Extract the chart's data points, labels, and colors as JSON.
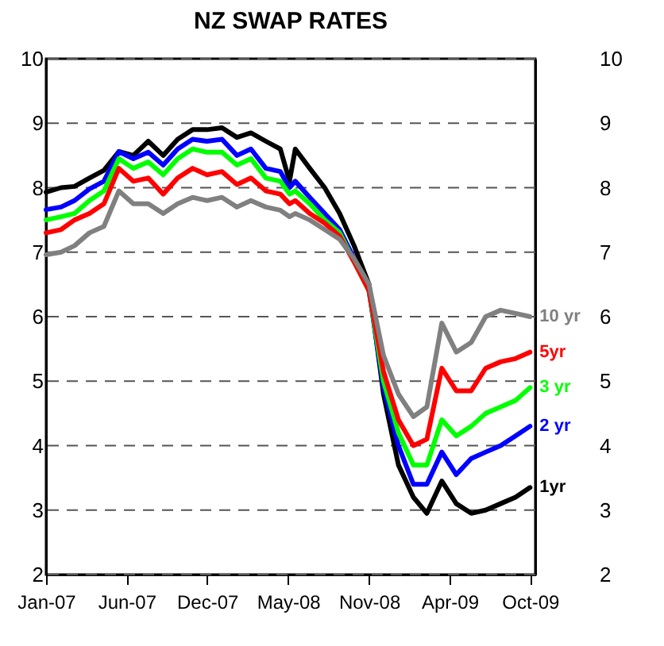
{
  "chart_data": {
    "type": "line",
    "title": "NZ SWAP RATES",
    "x": [
      "2007-01-01",
      "2007-02-01",
      "2007-03-01",
      "2007-04-01",
      "2007-05-01",
      "2007-06-01",
      "2007-07-01",
      "2007-08-01",
      "2007-09-01",
      "2007-10-01",
      "2007-11-01",
      "2007-12-01",
      "2008-01-01",
      "2008-02-01",
      "2008-03-01",
      "2008-04-01",
      "2008-05-01",
      "2008-05-20",
      "2008-06-01",
      "2008-07-01",
      "2008-08-01",
      "2008-09-01",
      "2008-10-01",
      "2008-11-01",
      "2008-12-01",
      "2009-01-01",
      "2009-02-01",
      "2009-03-01",
      "2009-04-01",
      "2009-05-01",
      "2009-06-01",
      "2009-07-01",
      "2009-08-01",
      "2009-09-01",
      "2009-10-01"
    ],
    "series": [
      {
        "name": "1yr",
        "color": "#000000",
        "values": [
          7.93,
          8.0,
          8.02,
          8.15,
          8.27,
          8.56,
          8.5,
          8.72,
          8.5,
          8.75,
          8.9,
          8.9,
          8.93,
          8.78,
          8.85,
          8.72,
          8.6,
          8.1,
          8.6,
          8.3,
          8.0,
          7.6,
          7.1,
          6.5,
          4.8,
          3.7,
          3.2,
          2.95,
          3.45,
          3.1,
          2.95,
          3.0,
          3.1,
          3.2,
          3.35
        ]
      },
      {
        "name": "2 yr",
        "color": "#0000ff",
        "values": [
          7.66,
          7.7,
          7.8,
          7.98,
          8.1,
          8.56,
          8.45,
          8.55,
          8.35,
          8.6,
          8.75,
          8.72,
          8.75,
          8.5,
          8.6,
          8.3,
          8.25,
          8.0,
          8.1,
          7.85,
          7.6,
          7.35,
          6.9,
          6.4,
          4.9,
          4.0,
          3.4,
          3.4,
          3.9,
          3.55,
          3.8,
          3.9,
          4.0,
          4.15,
          4.3
        ]
      },
      {
        "name": "3 yr",
        "color": "#00ff00",
        "values": [
          7.5,
          7.55,
          7.6,
          7.8,
          7.95,
          8.45,
          8.3,
          8.4,
          8.2,
          8.45,
          8.6,
          8.55,
          8.55,
          8.35,
          8.45,
          8.15,
          8.1,
          7.9,
          7.95,
          7.75,
          7.5,
          7.3,
          6.85,
          6.4,
          5.0,
          4.2,
          3.7,
          3.7,
          4.4,
          4.15,
          4.3,
          4.5,
          4.6,
          4.7,
          4.9
        ]
      },
      {
        "name": "5yr",
        "color": "#ff0000",
        "values": [
          7.3,
          7.35,
          7.5,
          7.6,
          7.75,
          8.3,
          8.1,
          8.15,
          7.9,
          8.15,
          8.3,
          8.2,
          8.25,
          8.05,
          8.15,
          7.95,
          7.9,
          7.75,
          7.8,
          7.6,
          7.45,
          7.25,
          6.85,
          6.4,
          5.15,
          4.4,
          4.0,
          4.1,
          5.2,
          4.85,
          4.85,
          5.2,
          5.3,
          5.35,
          5.45
        ]
      },
      {
        "name": "10 yr",
        "color": "#808080",
        "values": [
          6.96,
          7.0,
          7.1,
          7.3,
          7.4,
          7.95,
          7.75,
          7.75,
          7.6,
          7.75,
          7.85,
          7.8,
          7.85,
          7.7,
          7.8,
          7.7,
          7.65,
          7.55,
          7.6,
          7.5,
          7.35,
          7.2,
          6.9,
          6.5,
          5.4,
          4.8,
          4.45,
          4.6,
          5.9,
          5.45,
          5.6,
          6.0,
          6.1,
          6.05,
          6.0
        ]
      }
    ],
    "xlim": [
      "2007-01-01",
      "2009-10-12"
    ],
    "xticks": [
      {
        "value": "2007-01-01",
        "label": "Jan-07"
      },
      {
        "value": "2007-06-17",
        "label": "Jun-07"
      },
      {
        "value": "2007-12-01",
        "label": "Dec-07"
      },
      {
        "value": "2008-05-17",
        "label": "May-08"
      },
      {
        "value": "2008-11-01",
        "label": "Nov-08"
      },
      {
        "value": "2009-04-17",
        "label": "Apr-09"
      },
      {
        "value": "2009-10-01",
        "label": "Oct-09"
      }
    ],
    "ylim": [
      2,
      10
    ],
    "yticks": [
      2,
      3,
      4,
      5,
      6,
      7,
      8,
      9,
      10
    ],
    "y2lim": [
      2,
      10
    ],
    "y2ticks": [
      2,
      3,
      4,
      5,
      6,
      7,
      8,
      9,
      10
    ],
    "grid": "y",
    "legend": false,
    "marker": "none",
    "line_style": "solid"
  }
}
